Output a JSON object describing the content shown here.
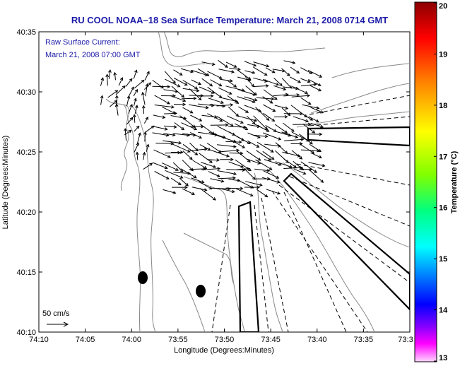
{
  "title": "RU COOL  NOAA–18  Sea Surface Temperature:  March 21, 2008 0714 GMT",
  "current_label_line1": "Raw Surface Current:",
  "current_label_line2": "March 21, 2008 07:00 GMT",
  "scale_label": "50 cm/s",
  "xaxis": {
    "label": "Longitude (Degrees:Minutes)",
    "ticks": [
      "74:10",
      "74:05",
      "74:00",
      "73:55",
      "73:50",
      "73:45",
      "73:40",
      "73:35",
      "73:3"
    ]
  },
  "yaxis": {
    "label": "Latitude (Degrees:Minutes)",
    "ticks": [
      "40:35",
      "40:30",
      "40:25",
      "40:20",
      "40:15",
      "40:10"
    ]
  },
  "colorbar": {
    "label": "Temperature (°C)",
    "ticks": [
      "20",
      "19",
      "18",
      "17",
      "16",
      "15",
      "14",
      "13"
    ],
    "colors": [
      "#8b0000",
      "#ff0000",
      "#ff8000",
      "#ffff00",
      "#80ff00",
      "#00ff80",
      "#00ffff",
      "#0080ff",
      "#0000ff",
      "#8000ff",
      "#ff00ff",
      "#ffd0ff"
    ]
  },
  "colors": {
    "title": "#1a1aa8",
    "label": "#1a1aa8",
    "coast": "#888888"
  }
}
